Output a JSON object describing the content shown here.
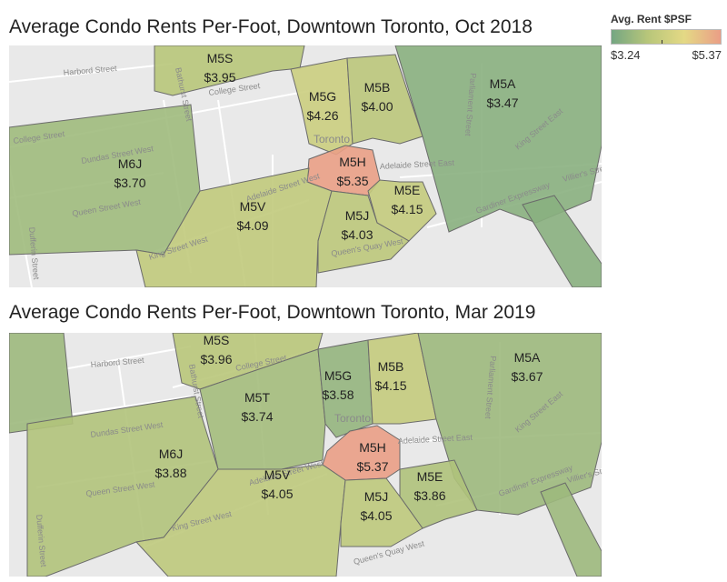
{
  "legend": {
    "title": "Avg. Rent $PSF",
    "min_label": "$3.24",
    "max_label": "$5.37",
    "min_value": 3.24,
    "max_value": 5.37,
    "colors": [
      "#74a682",
      "#b8c67a",
      "#e4d985",
      "#ea9e86"
    ]
  },
  "maps": [
    {
      "title": "Average Condo Rents Per-Foot, Downtown Toronto, Oct 2018",
      "city_label": "Toronto",
      "roads": [
        "Harbord Street",
        "College Street",
        "College Street",
        "Bathurst Street",
        "Dundas Street West",
        "Queen Street West",
        "King Street West",
        "Adelaide Street West",
        "Adelaide Street East",
        "King Street East",
        "Parliament Street",
        "Gardiner Expressway",
        "Queen's Quay West",
        "Villier's Street",
        "Dufferin Street"
      ],
      "zones": [
        {
          "code": "M5S",
          "rent": "$3.95",
          "value": 3.95
        },
        {
          "code": "M5G",
          "rent": "$4.26",
          "value": 4.26
        },
        {
          "code": "M5B",
          "rent": "$4.00",
          "value": 4.0
        },
        {
          "code": "M5A",
          "rent": "$3.47",
          "value": 3.47
        },
        {
          "code": "M6J",
          "rent": "$3.70",
          "value": 3.7
        },
        {
          "code": "M5H",
          "rent": "$5.35",
          "value": 5.35
        },
        {
          "code": "M5E",
          "rent": "$4.15",
          "value": 4.15
        },
        {
          "code": "M5V",
          "rent": "$4.09",
          "value": 4.09
        },
        {
          "code": "M5J",
          "rent": "$4.03",
          "value": 4.03
        }
      ]
    },
    {
      "title": "Average Condo Rents Per-Foot, Downtown Toronto, Mar 2019",
      "city_label": "Toronto",
      "roads": [
        "Harbord Street",
        "College Street",
        "Bathurst Street",
        "Dundas Street West",
        "Queen Street West",
        "King Street West",
        "Adelaide Street West",
        "Adelaide Street East",
        "King Street East",
        "Parliament Street",
        "Gardiner Expressway",
        "Queen's Quay West",
        "Villier's Street",
        "Dufferin Street"
      ],
      "zones": [
        {
          "code": "M5S",
          "rent": "$3.96",
          "value": 3.96
        },
        {
          "code": "M5G",
          "rent": "$3.58",
          "value": 3.58
        },
        {
          "code": "M5B",
          "rent": "$4.15",
          "value": 4.15
        },
        {
          "code": "M5A",
          "rent": "$3.67",
          "value": 3.67
        },
        {
          "code": "M5T",
          "rent": "$3.74",
          "value": 3.74
        },
        {
          "code": "M6J",
          "rent": "$3.88",
          "value": 3.88
        },
        {
          "code": "M5H",
          "rent": "$5.37",
          "value": 5.37
        },
        {
          "code": "M5E",
          "rent": "$3.86",
          "value": 3.86
        },
        {
          "code": "M5V",
          "rent": "$4.05",
          "value": 4.05
        },
        {
          "code": "M5J",
          "rent": "$4.05",
          "value": 4.05
        }
      ]
    }
  ]
}
